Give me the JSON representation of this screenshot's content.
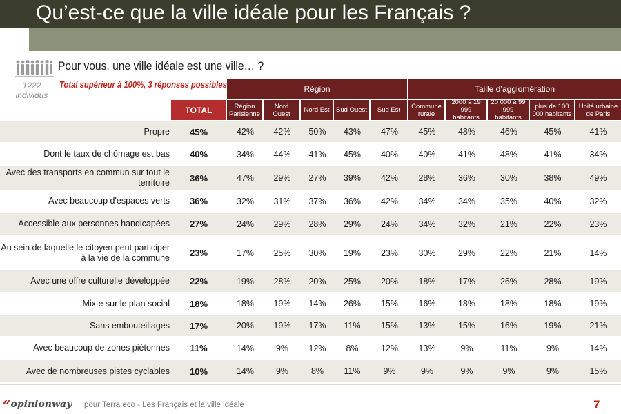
{
  "title": "Qu’est-ce que la ville idéale pour les Français ?",
  "question": "Pour vous, une ville idéale est une ville… ?",
  "sample": {
    "count": "1222",
    "unit": "individus"
  },
  "note": "Total supérieur à 100%, 3 réponses possibles",
  "headers": {
    "total": "TOTAL",
    "groups": [
      {
        "label": "Région"
      },
      {
        "label": "Taille d’agglomération"
      }
    ],
    "columns": [
      {
        "label": "Région Parisienne"
      },
      {
        "label": "Nord Ouest"
      },
      {
        "label": "Nord Est"
      },
      {
        "label": "Sud Ouest"
      },
      {
        "label": "Sud Est"
      },
      {
        "label": "Commune rurale"
      },
      {
        "label": "2000 à 19 999 habitants"
      },
      {
        "label": "20 000 à 99 999 habitants"
      },
      {
        "label": "plus de 100 000 habitants"
      },
      {
        "label": "Unité urbaine de Paris"
      }
    ]
  },
  "rows": [
    {
      "label": "Propre",
      "total": "45%",
      "values": [
        "42%",
        "42%",
        "50%",
        "43%",
        "47%",
        "45%",
        "48%",
        "46%",
        "45%",
        "41%"
      ]
    },
    {
      "label": "Dont le taux de chômage est bas",
      "total": "40%",
      "values": [
        "34%",
        "44%",
        "41%",
        "45%",
        "40%",
        "40%",
        "41%",
        "48%",
        "41%",
        "34%"
      ]
    },
    {
      "label": "Avec des transports en commun sur tout le territoire",
      "total": "36%",
      "values": [
        "47%",
        "29%",
        "27%",
        "39%",
        "42%",
        "28%",
        "36%",
        "30%",
        "38%",
        "49%"
      ]
    },
    {
      "label": "Avec beaucoup d'espaces verts",
      "total": "36%",
      "values": [
        "32%",
        "31%",
        "37%",
        "36%",
        "42%",
        "34%",
        "34%",
        "35%",
        "40%",
        "32%"
      ]
    },
    {
      "label": "Accessible aux personnes handicapées",
      "total": "27%",
      "values": [
        "24%",
        "29%",
        "28%",
        "29%",
        "24%",
        "34%",
        "32%",
        "21%",
        "22%",
        "23%"
      ]
    },
    {
      "label": "Au sein de laquelle le citoyen peut participer à la vie de la commune",
      "total": "23%",
      "values": [
        "17%",
        "25%",
        "30%",
        "19%",
        "23%",
        "30%",
        "29%",
        "22%",
        "21%",
        "14%"
      ]
    },
    {
      "label": "Avec une offre culturelle développée",
      "total": "22%",
      "values": [
        "19%",
        "28%",
        "20%",
        "25%",
        "20%",
        "18%",
        "17%",
        "26%",
        "28%",
        "19%"
      ]
    },
    {
      "label": "Mixte sur le plan social",
      "total": "18%",
      "values": [
        "18%",
        "19%",
        "14%",
        "26%",
        "15%",
        "16%",
        "18%",
        "18%",
        "18%",
        "19%"
      ]
    },
    {
      "label": "Sans embouteillages",
      "total": "17%",
      "values": [
        "20%",
        "19%",
        "17%",
        "11%",
        "15%",
        "13%",
        "15%",
        "16%",
        "19%",
        "21%"
      ]
    },
    {
      "label": "Avec beaucoup de zones piétonnes",
      "total": "11%",
      "values": [
        "14%",
        "9%",
        "12%",
        "8%",
        "12%",
        "13%",
        "9%",
        "11%",
        "9%",
        "14%"
      ]
    },
    {
      "label": "Avec de nombreuses pistes cyclables",
      "total": "10%",
      "values": [
        "14%",
        "9%",
        "8%",
        "11%",
        "9%",
        "9%",
        "9%",
        "9%",
        "9%",
        "15%"
      ]
    }
  ],
  "footer": {
    "logo_mark": "“",
    "logo_text": "opinionway",
    "source": "pour Terra eco - Les Français et la ville idéale",
    "page": "7"
  },
  "colors": {
    "title_bar": "#3b3e2c",
    "title_band": "#8c917a",
    "header_dark_red": "#6b1f1f",
    "total_red": "#b52d2d",
    "row_grey": "#ebebe4",
    "accent_red": "#c0251f"
  },
  "icons": [
    "people-group-icon"
  ]
}
